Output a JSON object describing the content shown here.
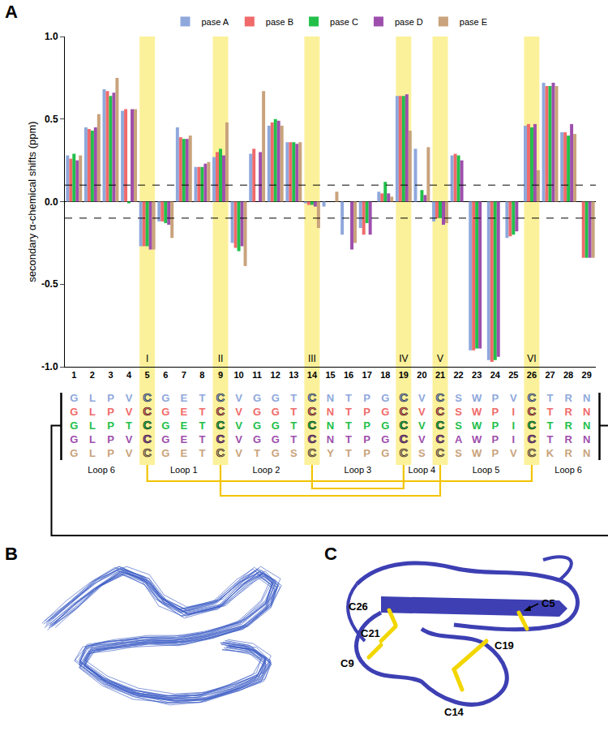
{
  "chart_data": {
    "type": "bar",
    "ylabel": "secondary α-chemical shifts (ppm)",
    "categories": [
      "1",
      "2",
      "3",
      "4",
      "5",
      "6",
      "7",
      "8",
      "9",
      "10",
      "11",
      "12",
      "13",
      "14",
      "15",
      "16",
      "17",
      "18",
      "19",
      "20",
      "21",
      "22",
      "23",
      "24",
      "25",
      "26",
      "27",
      "28",
      "29"
    ],
    "series": [
      {
        "name": "pase A",
        "color": "#8fa8dc",
        "sequence": "GLPVCGETCVGGTCNTPGCVCSWPVCTRN",
        "values": [
          0.28,
          0.45,
          0.68,
          0.55,
          -0.27,
          -0.12,
          0.45,
          0.21,
          0.27,
          -0.25,
          0.29,
          0.46,
          0.36,
          -0.01,
          -0.03,
          -0.2,
          -0.16,
          0.06,
          0.64,
          0.32,
          -0.12,
          0.28,
          -0.9,
          -0.96,
          -0.22,
          0.46,
          0.72,
          0.42,
          null
        ]
      },
      {
        "name": "pase B",
        "color": "#f06a6a",
        "sequence": "GLPVCGETCVGGTCNTPGCVCSWPICTRN",
        "values": [
          0.26,
          0.44,
          0.67,
          0.56,
          -0.27,
          -0.12,
          0.39,
          0.21,
          0.3,
          -0.28,
          0.32,
          0.48,
          0.36,
          -0.02,
          null,
          null,
          -0.2,
          0.05,
          0.64,
          null,
          -0.1,
          0.29,
          -0.9,
          -0.97,
          -0.21,
          0.47,
          0.7,
          0.42,
          -0.34
        ]
      },
      {
        "name": "pase C",
        "color": "#22c04a",
        "sequence": "GLPTCGETCVGGTCNTPGCVCSWPICTRN",
        "values": [
          0.29,
          0.43,
          0.64,
          -0.01,
          -0.27,
          -0.13,
          0.38,
          0.21,
          0.32,
          -0.3,
          null,
          0.5,
          0.36,
          -0.02,
          null,
          null,
          -0.13,
          0.12,
          0.64,
          0.07,
          -0.1,
          0.28,
          -0.89,
          -0.96,
          -0.2,
          0.45,
          0.7,
          0.4,
          -0.34
        ]
      },
      {
        "name": "pase D",
        "color": "#9e4fad",
        "sequence": "GLPVCGETCVGGTCNTPGCVCAWPICTRN",
        "values": [
          0.25,
          0.45,
          0.66,
          0.56,
          -0.29,
          -0.14,
          0.38,
          0.23,
          0.28,
          -0.27,
          0.3,
          0.49,
          0.35,
          -0.03,
          null,
          -0.29,
          -0.2,
          0.05,
          0.65,
          0.04,
          -0.14,
          0.25,
          -0.89,
          -0.94,
          -0.18,
          0.47,
          0.72,
          0.47,
          -0.34
        ]
      },
      {
        "name": "pase E",
        "color": "#c9a37c",
        "sequence": "GLPVCGETCVTGSCYTPGCSCSWPVCKRN",
        "values": [
          0.28,
          0.53,
          0.75,
          0.56,
          -0.29,
          -0.22,
          0.4,
          0.24,
          0.48,
          -0.39,
          0.67,
          0.46,
          0.36,
          -0.16,
          0.06,
          -0.25,
          null,
          0.03,
          0.43,
          0.33,
          -0.13,
          null,
          null,
          null,
          null,
          0.19,
          0.7,
          0.41,
          -0.34
        ]
      }
    ],
    "ylim": [
      -1,
      1
    ],
    "yticks": [
      {
        "value": -1,
        "label": "-1.0"
      },
      {
        "value": -0.5,
        "label": "-0.5"
      },
      {
        "value": 0,
        "label": "0.0"
      },
      {
        "value": 0.5,
        "label": "0.5"
      },
      {
        "value": 1,
        "label": "1.0"
      }
    ],
    "grid": false,
    "legend": "top",
    "reference_lines": [
      0.1,
      -0.1
    ],
    "highlights": [
      {
        "category": "5",
        "label": "I"
      },
      {
        "category": "9",
        "label": "II"
      },
      {
        "category": "14",
        "label": "III"
      },
      {
        "category": "19",
        "label": "IV"
      },
      {
        "category": "21",
        "label": "V"
      },
      {
        "category": "26",
        "label": "VI"
      }
    ],
    "loops": [
      {
        "label": "Loop 6",
        "from": "1",
        "to": "4"
      },
      {
        "label": "Loop 1",
        "from": "6",
        "to": "8"
      },
      {
        "label": "Loop 2",
        "from": "10",
        "to": "13"
      },
      {
        "label": "Loop 3",
        "from": "15",
        "to": "18"
      },
      {
        "label": "Loop 4",
        "from": "20",
        "to": "20"
      },
      {
        "label": "Loop 5",
        "from": "22",
        "to": "25"
      },
      {
        "label": "Loop 6",
        "from": "27",
        "to": "29"
      }
    ],
    "disulfide_bonds": [
      [
        "5",
        "26"
      ],
      [
        "14",
        "19"
      ],
      [
        "9",
        "21"
      ]
    ]
  },
  "panel_labels": [
    "A",
    "B",
    "C"
  ],
  "structure_labels": [
    "C26",
    "C21",
    "C9",
    "C14",
    "C19",
    "C5"
  ]
}
